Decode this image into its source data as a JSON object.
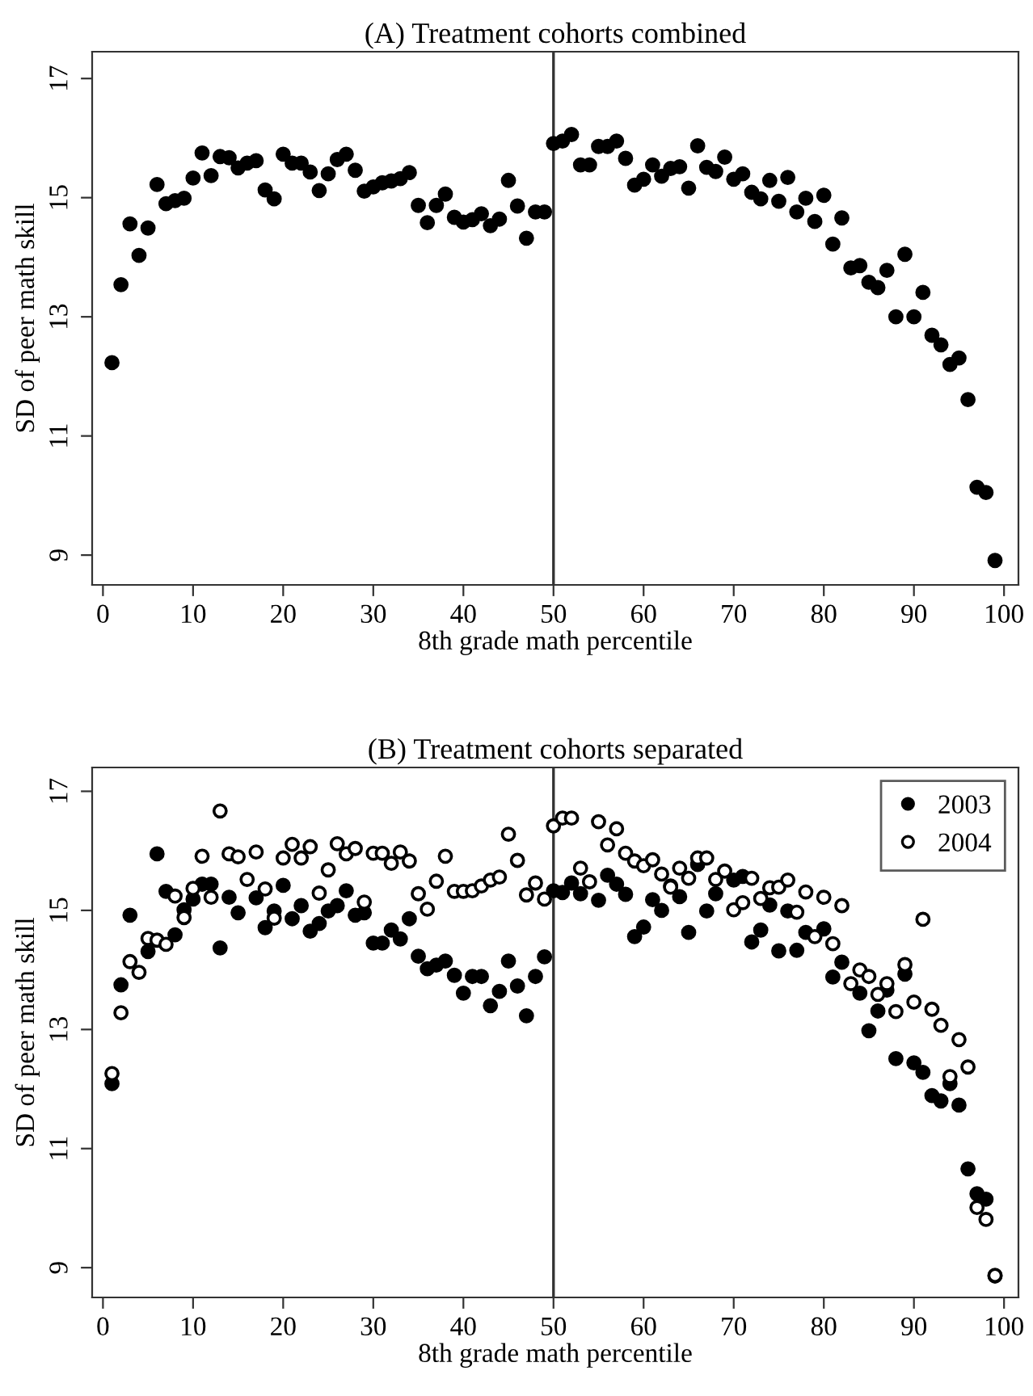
{
  "chart_data": [
    {
      "type": "scatter",
      "title": "(A) Treatment cohorts combined",
      "xlabel": "8th grade math percentile",
      "ylabel": "SD of peer math skill",
      "xlim": [
        -1.2,
        101.6
      ],
      "xticks": [
        0,
        10,
        20,
        30,
        40,
        50,
        60,
        70,
        80,
        90,
        100
      ],
      "ylim": [
        8.5,
        17.45
      ],
      "yticks": [
        9,
        11,
        13,
        15,
        17
      ],
      "grid": false,
      "legend": false,
      "marker": "circle",
      "ref_lines": [
        {
          "axis": "x",
          "value": 50,
          "color": "#333333"
        }
      ],
      "x": [
        1,
        2,
        3,
        4,
        5,
        6,
        7,
        8,
        9,
        10,
        11,
        12,
        13,
        14,
        15,
        16,
        17,
        18,
        19,
        20,
        21,
        22,
        23,
        24,
        25,
        26,
        27,
        28,
        29,
        30,
        31,
        32,
        33,
        34,
        35,
        36,
        37,
        38,
        39,
        40,
        41,
        42,
        43,
        44,
        45,
        46,
        47,
        48,
        49,
        50,
        51,
        52,
        53,
        54,
        55,
        56,
        57,
        58,
        59,
        60,
        61,
        62,
        63,
        64,
        65,
        66,
        67,
        68,
        69,
        70,
        71,
        72,
        73,
        74,
        75,
        76,
        77,
        78,
        79,
        80,
        81,
        82,
        83,
        84,
        85,
        86,
        87,
        88,
        89,
        90,
        91,
        92,
        93,
        94,
        95,
        96,
        97,
        98,
        99
      ],
      "series": [
        {
          "color": "#000000",
          "values": [
            12.23,
            13.54,
            14.56,
            14.03,
            14.49,
            15.22,
            14.9,
            14.95,
            14.99,
            15.33,
            15.75,
            15.37,
            15.69,
            15.67,
            15.5,
            15.58,
            15.62,
            15.13,
            14.98,
            15.73,
            15.58,
            15.58,
            15.43,
            15.12,
            15.4,
            15.64,
            15.73,
            15.46,
            15.11,
            15.18,
            15.25,
            15.28,
            15.32,
            15.42,
            14.87,
            14.58,
            14.87,
            15.06,
            14.67,
            14.59,
            14.63,
            14.73,
            14.53,
            14.64,
            15.29,
            14.86,
            14.32,
            14.76,
            14.76,
            15.91,
            15.95,
            16.06,
            15.55,
            15.55,
            15.86,
            15.86,
            15.95,
            15.66,
            15.21,
            15.31,
            15.55,
            15.36,
            15.49,
            15.52,
            15.16,
            15.87,
            15.51,
            15.44,
            15.68,
            15.31,
            15.4,
            15.09,
            14.98,
            15.29,
            14.94,
            15.34,
            14.76,
            14.99,
            14.6,
            15.04,
            14.22,
            14.66,
            13.82,
            13.86,
            13.58,
            13.49,
            13.78,
            13.0,
            14.05,
            13.0,
            13.41,
            12.69,
            12.53,
            12.2,
            12.31,
            11.61,
            10.14,
            10.05,
            8.91
          ]
        }
      ]
    },
    {
      "type": "scatter",
      "title": "(B) Treatment cohorts separated",
      "xlabel": "8th grade math percentile",
      "ylabel": "SD of peer math skill",
      "xlim": [
        -1.2,
        101.6
      ],
      "xticks": [
        0,
        10,
        20,
        30,
        40,
        50,
        60,
        70,
        80,
        90,
        100
      ],
      "ylim": [
        8.5,
        17.4
      ],
      "yticks": [
        9,
        11,
        13,
        15,
        17
      ],
      "grid": false,
      "legend": "top right",
      "marker": "circle",
      "ref_lines": [
        {
          "axis": "x",
          "value": 50,
          "color": "#333333"
        }
      ],
      "x": [
        1,
        2,
        3,
        4,
        5,
        6,
        7,
        8,
        9,
        10,
        11,
        12,
        13,
        14,
        15,
        16,
        17,
        18,
        19,
        20,
        21,
        22,
        23,
        24,
        25,
        26,
        27,
        28,
        29,
        30,
        31,
        32,
        33,
        34,
        35,
        36,
        37,
        38,
        39,
        40,
        41,
        42,
        43,
        44,
        45,
        46,
        47,
        48,
        49,
        50,
        51,
        52,
        53,
        54,
        55,
        56,
        57,
        58,
        59,
        60,
        61,
        62,
        63,
        64,
        65,
        66,
        67,
        68,
        69,
        70,
        71,
        72,
        73,
        74,
        75,
        76,
        77,
        78,
        79,
        80,
        81,
        82,
        83,
        84,
        85,
        86,
        87,
        88,
        89,
        90,
        91,
        92,
        93,
        94,
        95,
        96,
        97,
        98,
        99
      ],
      "series": [
        {
          "name": "2003",
          "color": "#000000",
          "values": [
            12.09,
            13.75,
            14.92,
            null,
            14.31,
            15.95,
            15.32,
            14.59,
            15.01,
            15.19,
            15.44,
            15.44,
            14.37,
            15.22,
            14.96,
            null,
            15.21,
            14.71,
            14.99,
            15.42,
            14.86,
            15.08,
            14.65,
            14.78,
            14.99,
            15.08,
            15.33,
            14.92,
            14.96,
            14.45,
            14.45,
            14.67,
            14.52,
            14.86,
            14.23,
            14.02,
            14.08,
            14.15,
            13.91,
            13.61,
            13.89,
            13.89,
            13.4,
            13.64,
            14.15,
            13.73,
            13.23,
            13.89,
            14.22,
            15.33,
            15.3,
            15.46,
            15.28,
            null,
            15.17,
            15.59,
            15.44,
            15.27,
            14.56,
            14.72,
            15.18,
            15.0,
            15.41,
            15.23,
            14.63,
            15.77,
            14.99,
            15.28,
            null,
            15.51,
            15.57,
            14.47,
            14.67,
            15.09,
            14.32,
            14.99,
            14.33,
            14.63,
            null,
            14.69,
            13.88,
            14.13,
            null,
            13.61,
            12.98,
            13.31,
            13.66,
            12.51,
            13.93,
            12.44,
            12.28,
            11.89,
            11.8,
            12.09,
            11.73,
            10.66,
            10.24,
            10.15,
            8.86
          ]
        },
        {
          "name": "2004",
          "color": "#000000",
          "values": [
            12.26,
            13.28,
            14.14,
            13.96,
            14.53,
            14.5,
            14.43,
            15.24,
            14.88,
            15.37,
            15.91,
            15.22,
            16.67,
            15.95,
            15.9,
            15.52,
            15.98,
            15.36,
            14.87,
            15.88,
            16.11,
            15.88,
            16.07,
            15.29,
            15.68,
            16.12,
            15.95,
            16.04,
            15.14,
            15.96,
            15.96,
            15.79,
            15.98,
            15.83,
            15.28,
            15.02,
            15.49,
            15.91,
            15.32,
            15.32,
            15.33,
            15.41,
            15.51,
            15.56,
            16.28,
            15.84,
            15.26,
            15.46,
            15.19,
            16.42,
            16.55,
            16.55,
            15.71,
            15.48,
            16.49,
            16.1,
            16.37,
            15.96,
            15.83,
            15.75,
            15.85,
            15.61,
            15.39,
            15.71,
            15.54,
            15.88,
            15.88,
            15.52,
            15.66,
            15.01,
            15.13,
            15.54,
            15.2,
            15.38,
            15.39,
            15.51,
            14.97,
            15.31,
            14.56,
            15.22,
            14.44,
            15.08,
            13.77,
            14.0,
            13.89,
            13.59,
            13.77,
            13.3,
            14.09,
            13.46,
            14.85,
            13.34,
            13.07,
            12.21,
            12.83,
            12.37,
            10.01,
            9.81,
            8.87
          ]
        }
      ]
    }
  ]
}
